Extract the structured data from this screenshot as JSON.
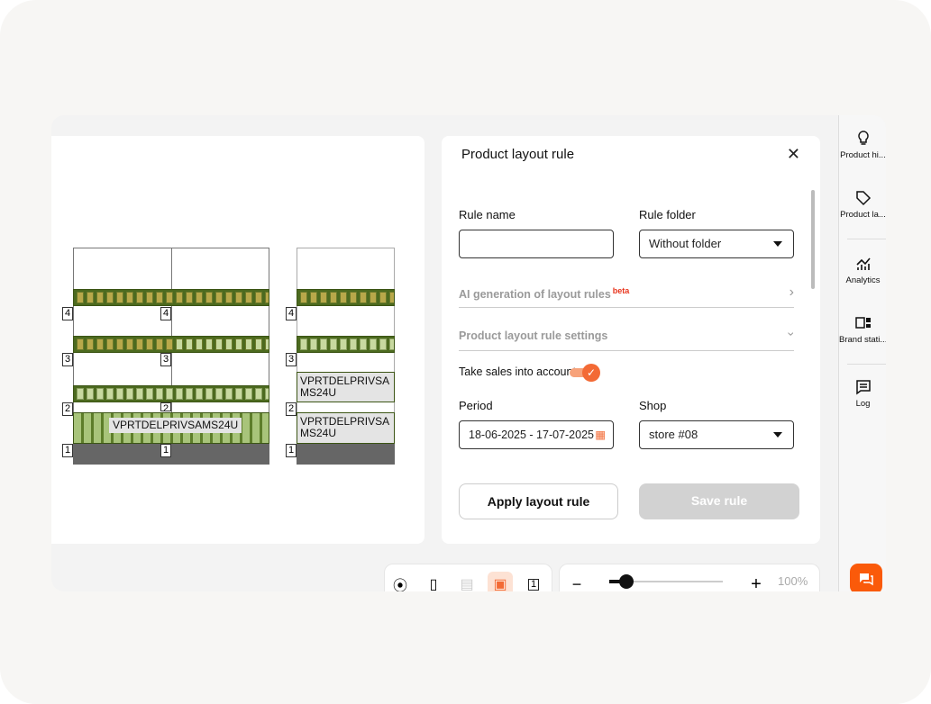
{
  "planogram": {
    "shelf_numbers": [
      "1",
      "2",
      "3",
      "4"
    ],
    "product_label": "VPRTDELPRIVSAMS24U",
    "product_label_wrapped": [
      "VPRTDELPRIVSA",
      "MS24U"
    ]
  },
  "panel": {
    "title": "Product layout rule",
    "rule_name_label": "Rule name",
    "rule_name_value": "",
    "rule_folder_label": "Rule folder",
    "rule_folder_value": "Without folder",
    "ai_section": "AI generation of layout rules",
    "ai_badge": "beta",
    "settings_section": "Product layout rule settings",
    "sales_toggle_label": "Take sales into account",
    "sales_toggle_on": true,
    "period_label": "Period",
    "period_value": "18-06-2025 - 17-07-2025",
    "shop_label": "Shop",
    "shop_value": "store #08",
    "apply_button": "Apply layout rule",
    "save_button": "Save rule"
  },
  "sidebar": {
    "items": [
      {
        "label": "Product hi...",
        "icon": "lightbulb-icon"
      },
      {
        "label": "Product la...",
        "icon": "tag-icon"
      },
      {
        "label": "Analytics",
        "icon": "analytics-icon"
      },
      {
        "label": "Brand stati...",
        "icon": "brand-stats-icon"
      },
      {
        "label": "Log",
        "icon": "log-icon"
      }
    ]
  },
  "zoom": {
    "minus": "−",
    "plus": "+",
    "level": "100%",
    "slider_fraction": 0.15
  },
  "colors": {
    "accent": "#fa5a0a",
    "toggle": "#f36a35",
    "shelf_green": "#4c6a1f"
  }
}
